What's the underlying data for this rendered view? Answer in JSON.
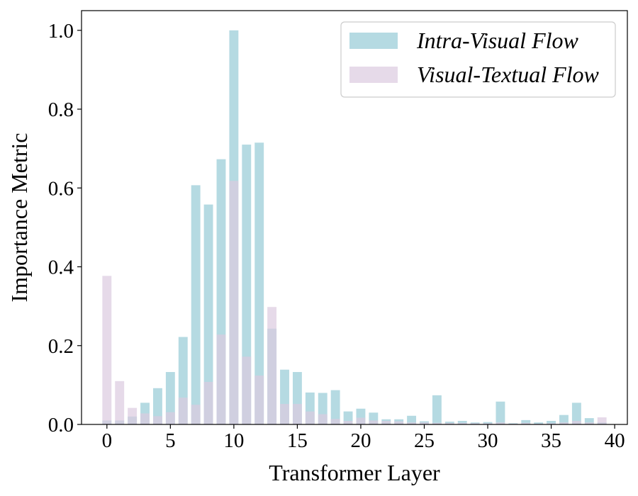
{
  "chart_data": {
    "type": "bar",
    "xlabel": "Transformer Layer",
    "ylabel": "Importance Metric",
    "xlim": [
      -2,
      41
    ],
    "ylim": [
      0,
      1.05
    ],
    "xticks": [
      0,
      5,
      10,
      15,
      20,
      25,
      30,
      35,
      40
    ],
    "xtick_labels": [
      "0",
      "5",
      "10",
      "15",
      "20",
      "25",
      "30",
      "35",
      "40"
    ],
    "yticks": [
      0.0,
      0.2,
      0.4,
      0.6,
      0.8,
      1.0
    ],
    "ytick_labels": [
      "0.0",
      "0.2",
      "0.4",
      "0.6",
      "0.8",
      "1.0"
    ],
    "legend_position": "top-right",
    "grid": false,
    "x": [
      0,
      1,
      2,
      3,
      4,
      5,
      6,
      7,
      8,
      9,
      10,
      11,
      12,
      13,
      14,
      15,
      16,
      17,
      18,
      19,
      20,
      21,
      22,
      23,
      24,
      25,
      26,
      27,
      28,
      29,
      30,
      31,
      32,
      33,
      34,
      35,
      36,
      37,
      38,
      39
    ],
    "series": [
      {
        "name": "Intra-Visual Flow",
        "color": "#a8d3dd",
        "values": [
          0.01,
          0.01,
          0.02,
          0.055,
          0.092,
          0.133,
          0.222,
          0.607,
          0.558,
          0.673,
          1.0,
          0.71,
          0.715,
          0.243,
          0.139,
          0.133,
          0.081,
          0.08,
          0.087,
          0.033,
          0.04,
          0.03,
          0.013,
          0.013,
          0.022,
          0.008,
          0.074,
          0.007,
          0.009,
          0.005,
          0.006,
          0.058,
          0.003,
          0.011,
          0.005,
          0.009,
          0.024,
          0.055,
          0.016,
          0.005
        ]
      },
      {
        "name": "Visual-Textual Flow",
        "color": "#dccadf",
        "values": [
          0.377,
          0.11,
          0.042,
          0.028,
          0.021,
          0.031,
          0.068,
          0.05,
          0.108,
          0.228,
          0.618,
          0.172,
          0.124,
          0.298,
          0.052,
          0.052,
          0.033,
          0.026,
          0.014,
          0.009,
          0.017,
          0.01,
          0.009,
          0.008,
          0.005,
          0.005,
          0.004,
          0.004,
          0.004,
          0.003,
          0.003,
          0.005,
          0.002,
          0.004,
          0.002,
          0.003,
          0.005,
          0.009,
          0.005,
          0.018
        ]
      }
    ]
  }
}
